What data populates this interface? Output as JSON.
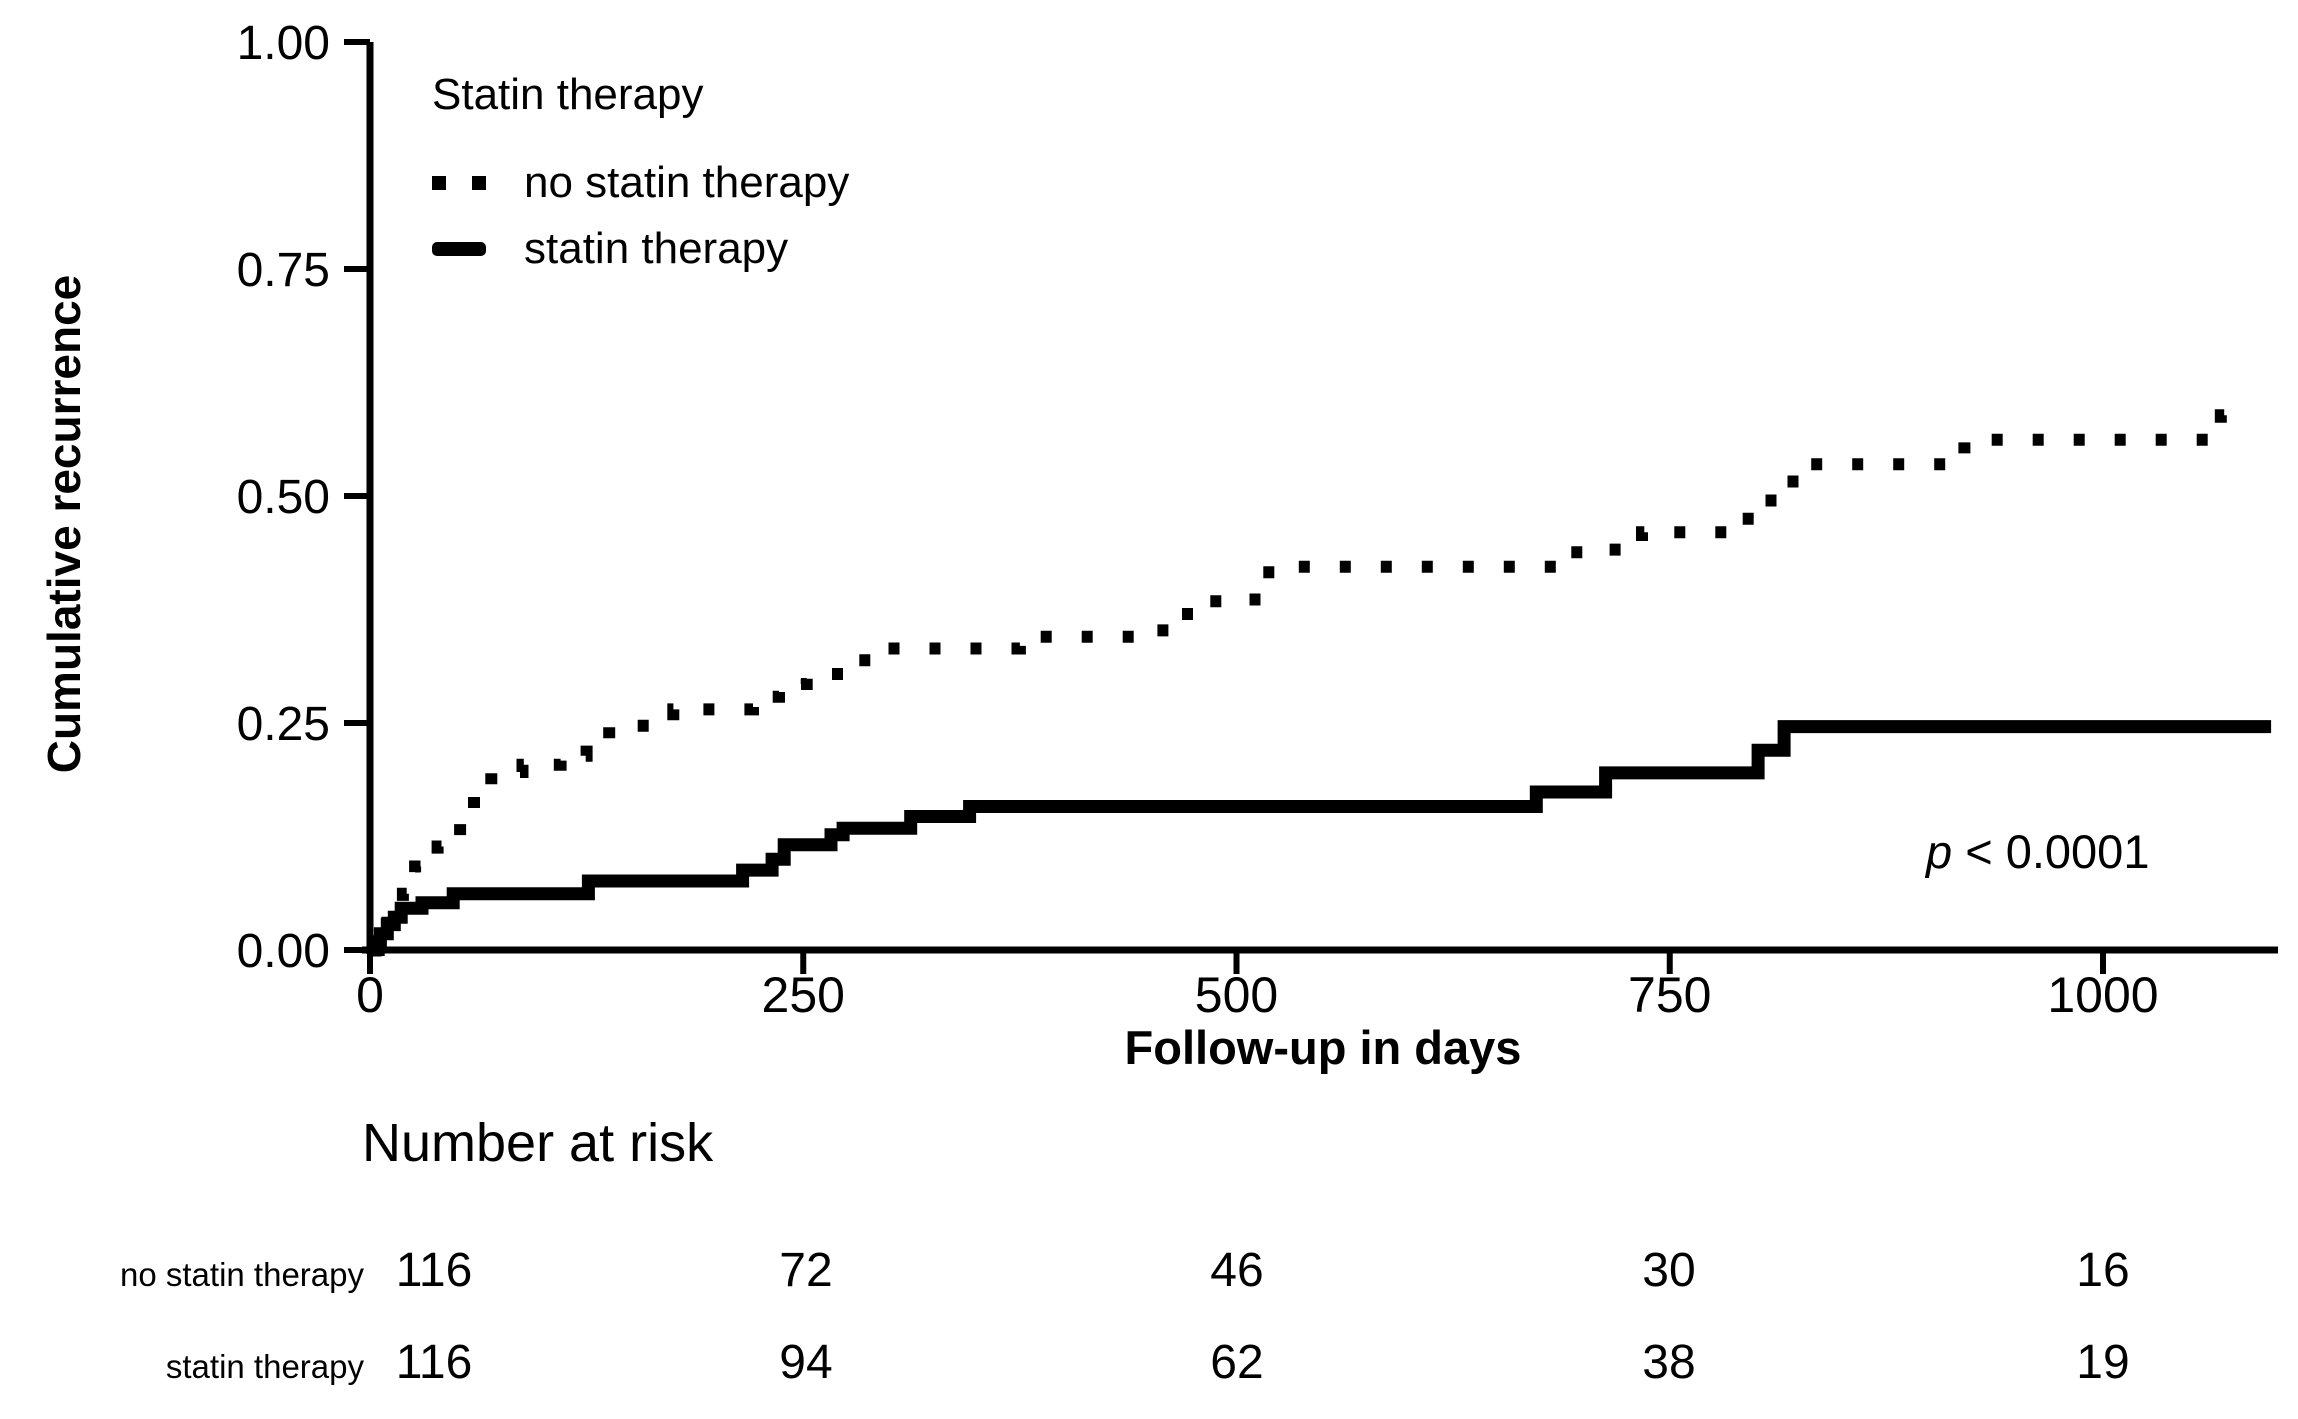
{
  "figure": {
    "y_axis_label": "Cumulative recurrence",
    "x_axis_label": "Follow-up in days",
    "p_label": "p",
    "p_value": " < 0.0001",
    "legend": {
      "title": "Statin therapy",
      "items": [
        {
          "label": "no statin therapy",
          "style": "dotted"
        },
        {
          "label": "statin therapy",
          "style": "solid"
        }
      ]
    },
    "number_at_risk": {
      "title": "Number at risk",
      "rows": [
        {
          "label": "no statin therapy",
          "values": [
            "116",
            "72",
            "46",
            "30",
            "16"
          ]
        },
        {
          "label": "statin therapy",
          "values": [
            "116",
            "94",
            "62",
            "38",
            "19"
          ]
        }
      ]
    }
  },
  "chart_data": {
    "type": "line",
    "subtype": "kaplan-meier-cumulative-incidence-step",
    "title": "",
    "xlabel": "Follow-up in days",
    "ylabel": "Cumulative recurrence",
    "xlim": [
      0,
      1100
    ],
    "ylim": [
      0,
      1.0
    ],
    "grid": false,
    "legend_position": "inside-top-left",
    "annotation": "p < 0.0001",
    "line_color": "#000000",
    "xticks": [
      {
        "v": 0,
        "label": "0"
      },
      {
        "v": 250,
        "label": "250"
      },
      {
        "v": 500,
        "label": "500"
      },
      {
        "v": 750,
        "label": "750"
      },
      {
        "v": 1000,
        "label": "1000"
      }
    ],
    "yticks": [
      {
        "v": 0,
        "label": "0.00"
      },
      {
        "v": 0.25,
        "label": "0.25"
      },
      {
        "v": 0.5,
        "label": "0.50"
      },
      {
        "v": 0.75,
        "label": "0.75"
      },
      {
        "v": 1.0,
        "label": "1.00"
      }
    ],
    "series": [
      {
        "name": "no statin therapy",
        "line": "dotted",
        "color": "#000000",
        "points": [
          [
            0,
            0
          ],
          [
            5,
            0.012
          ],
          [
            10,
            0.03
          ],
          [
            19,
            0.062
          ],
          [
            26,
            0.092
          ],
          [
            39,
            0.114
          ],
          [
            52,
            0.139
          ],
          [
            60,
            0.171
          ],
          [
            70,
            0.196
          ],
          [
            88,
            0.204
          ],
          [
            110,
            0.214
          ],
          [
            125,
            0.228
          ],
          [
            138,
            0.247
          ],
          [
            175,
            0.265
          ],
          [
            221,
            0.279
          ],
          [
            236,
            0.293
          ],
          [
            252,
            0.304
          ],
          [
            273,
            0.319
          ],
          [
            290,
            0.332
          ],
          [
            375,
            0.345
          ],
          [
            449,
            0.352
          ],
          [
            466,
            0.37
          ],
          [
            481,
            0.384
          ],
          [
            500,
            0.386
          ],
          [
            515,
            0.416
          ],
          [
            533,
            0.422
          ],
          [
            690,
            0.438
          ],
          [
            715,
            0.441
          ],
          [
            734,
            0.46
          ],
          [
            788,
            0.475
          ],
          [
            802,
            0.495
          ],
          [
            816,
            0.516
          ],
          [
            830,
            0.535
          ],
          [
            920,
            0.562
          ],
          [
            1068,
            0.589
          ],
          [
            1082,
            0.589
          ]
        ]
      },
      {
        "name": "statin therapy",
        "line": "solid",
        "color": "#000000",
        "points": [
          [
            0,
            0
          ],
          [
            3,
            0.009
          ],
          [
            6,
            0.018
          ],
          [
            10,
            0.028
          ],
          [
            14,
            0.036
          ],
          [
            18,
            0.046
          ],
          [
            30,
            0.052
          ],
          [
            48,
            0.062
          ],
          [
            126,
            0.076
          ],
          [
            215,
            0.088
          ],
          [
            232,
            0.1
          ],
          [
            239,
            0.116
          ],
          [
            266,
            0.127
          ],
          [
            273,
            0.134
          ],
          [
            312,
            0.147
          ],
          [
            346,
            0.158
          ],
          [
            673,
            0.174
          ],
          [
            713,
            0.195
          ],
          [
            801,
            0.22
          ],
          [
            816,
            0.246
          ],
          [
            1097,
            0.246
          ]
        ]
      }
    ],
    "number_at_risk": {
      "times": [
        0,
        250,
        500,
        750,
        1000
      ],
      "groups": [
        {
          "name": "no statin therapy",
          "counts": [
            116,
            72,
            46,
            30,
            16
          ]
        },
        {
          "name": "statin therapy",
          "counts": [
            116,
            94,
            62,
            38,
            19
          ]
        }
      ]
    }
  }
}
